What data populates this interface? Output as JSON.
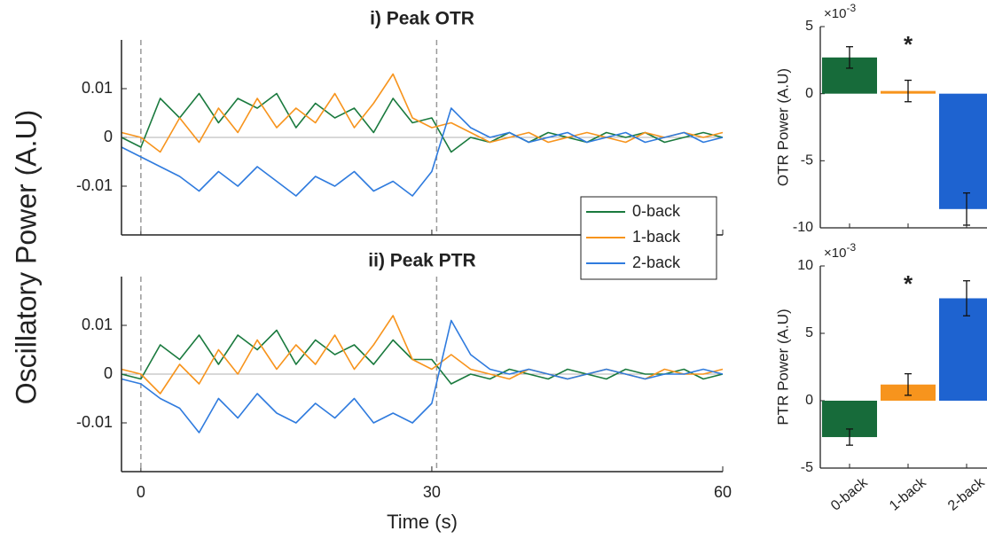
{
  "chart_data": [
    {
      "type": "line",
      "title": "i) Peak OTR",
      "ylabel": "Oscillatory Power (A.U)",
      "x": [
        -2,
        0,
        2,
        4,
        6,
        8,
        10,
        12,
        14,
        16,
        18,
        20,
        22,
        24,
        26,
        28,
        30,
        32,
        34,
        36,
        38,
        40,
        42,
        44,
        46,
        48,
        50,
        52,
        54,
        56,
        58,
        60
      ],
      "xlim": [
        -2,
        60
      ],
      "xticks": [
        0,
        30,
        60
      ],
      "ylim": [
        -0.02,
        0.02
      ],
      "yticks": [
        -0.01,
        0,
        0.01
      ],
      "vlines": [
        0,
        30.5
      ],
      "legend": "lower right",
      "series": [
        {
          "name": "0-back",
          "color": "#1a7a3e",
          "values": [
            0,
            -0.002,
            0.008,
            0.004,
            0.009,
            0.003,
            0.008,
            0.006,
            0.009,
            0.002,
            0.007,
            0.004,
            0.006,
            0.001,
            0.008,
            0.003,
            0.004,
            -0.003,
            0,
            -0.001,
            0.001,
            -0.001,
            0.001,
            0,
            -0.001,
            0.001,
            0,
            0.001,
            -0.001,
            0,
            0.001,
            0
          ]
        },
        {
          "name": "1-back",
          "color": "#f7941d",
          "values": [
            0.001,
            0,
            -0.003,
            0.004,
            -0.001,
            0.006,
            0.001,
            0.008,
            0.002,
            0.006,
            0.003,
            0.009,
            0.002,
            0.007,
            0.013,
            0.004,
            0.002,
            0.003,
            0.001,
            -0.001,
            0,
            0.001,
            -0.001,
            0,
            0.001,
            0,
            -0.001,
            0.001,
            0,
            0.001,
            0,
            0.001
          ]
        },
        {
          "name": "2-back",
          "color": "#2f7bde",
          "values": [
            -0.002,
            -0.004,
            -0.006,
            -0.008,
            -0.011,
            -0.007,
            -0.01,
            -0.006,
            -0.009,
            -0.012,
            -0.008,
            -0.01,
            -0.007,
            -0.011,
            -0.009,
            -0.012,
            -0.007,
            0.006,
            0.002,
            0,
            0.001,
            -0.001,
            0,
            0.001,
            -0.001,
            0,
            0.001,
            -0.001,
            0,
            0.001,
            -0.001,
            0
          ]
        }
      ]
    },
    {
      "type": "line",
      "title": "ii) Peak PTR",
      "xlabel": "Time (s)",
      "x": [
        -2,
        0,
        2,
        4,
        6,
        8,
        10,
        12,
        14,
        16,
        18,
        20,
        22,
        24,
        26,
        28,
        30,
        32,
        34,
        36,
        38,
        40,
        42,
        44,
        46,
        48,
        50,
        52,
        54,
        56,
        58,
        60
      ],
      "xlim": [
        -2,
        60
      ],
      "xticks": [
        0,
        30,
        60
      ],
      "ylim": [
        -0.02,
        0.02
      ],
      "yticks": [
        -0.01,
        0,
        0.01
      ],
      "vlines": [
        0,
        30.5
      ],
      "series": [
        {
          "name": "0-back",
          "color": "#1a7a3e",
          "values": [
            0,
            -0.001,
            0.006,
            0.003,
            0.008,
            0.002,
            0.008,
            0.005,
            0.009,
            0.002,
            0.007,
            0.004,
            0.006,
            0.002,
            0.007,
            0.003,
            0.003,
            -0.002,
            0,
            -0.001,
            0.001,
            0,
            -0.001,
            0.001,
            0,
            -0.001,
            0.001,
            0,
            0,
            0.001,
            -0.001,
            0
          ]
        },
        {
          "name": "1-back",
          "color": "#f7941d",
          "values": [
            0.001,
            0,
            -0.004,
            0.002,
            -0.002,
            0.005,
            0,
            0.007,
            0.001,
            0.006,
            0.002,
            0.008,
            0.001,
            0.006,
            0.012,
            0.003,
            0.001,
            0.004,
            0.001,
            0,
            -0.001,
            0.001,
            0,
            -0.001,
            0,
            0.001,
            0,
            -0.001,
            0.001,
            0,
            0,
            0.001
          ]
        },
        {
          "name": "2-back",
          "color": "#2f7bde",
          "values": [
            -0.001,
            -0.002,
            -0.005,
            -0.007,
            -0.012,
            -0.005,
            -0.009,
            -0.004,
            -0.008,
            -0.01,
            -0.006,
            -0.009,
            -0.005,
            -0.01,
            -0.008,
            -0.01,
            -0.006,
            0.011,
            0.004,
            0.001,
            0,
            0.001,
            0,
            -0.001,
            0,
            0.001,
            0,
            -0.001,
            0,
            0,
            0.001,
            0
          ]
        }
      ]
    },
    {
      "type": "bar",
      "ylabel": "OTR Power (A.U)",
      "y_multiplier": {
        "base": "×10",
        "exponent": "-3"
      },
      "categories": [
        null,
        null,
        null
      ],
      "values": [
        2.7,
        0.2,
        -8.6
      ],
      "errors": [
        0.8,
        0.8,
        1.2
      ],
      "colors": [
        "#176b3a",
        "#f7941d",
        "#1e63d0"
      ],
      "ylim": [
        -10,
        5
      ],
      "yticks": [
        -10,
        -5,
        0,
        5
      ],
      "significance": {
        "text": "*",
        "category": 1
      }
    },
    {
      "type": "bar",
      "ylabel": "PTR Power (A.U)",
      "y_multiplier": {
        "base": "×10",
        "exponent": "-3"
      },
      "categories": [
        "0-back",
        "1-back",
        "2-back"
      ],
      "values": [
        -2.7,
        1.2,
        7.6
      ],
      "errors": [
        0.6,
        0.8,
        1.3
      ],
      "colors": [
        "#176b3a",
        "#f7941d",
        "#1e63d0"
      ],
      "ylim": [
        -5,
        10
      ],
      "yticks": [
        -5,
        0,
        5,
        10
      ],
      "significance": {
        "text": "*",
        "category": 1
      }
    }
  ]
}
